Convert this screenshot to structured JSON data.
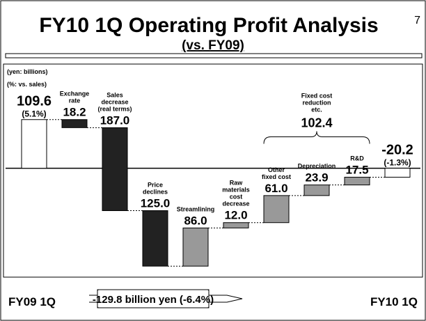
{
  "chart_data": {
    "type": "waterfall",
    "title": "FY10 1Q Operating Profit Analysis",
    "subtitle": "(vs. FY09)",
    "page_number": "7",
    "unit_labels": [
      "(yen: billions)",
      "(%: vs. sales)"
    ],
    "categories": [
      null,
      "Exchange\nrate",
      "Sales\ndecrease\n(real terms)",
      "Price\ndeclines",
      "Streamlining",
      "Raw\nmaterials\ncost\ndecrease",
      "Other\nfixed cost",
      "Depreciation",
      "R&D",
      null
    ],
    "values": [
      109.6,
      18.2,
      187.0,
      125.0,
      86.0,
      12.0,
      61.0,
      23.9,
      17.5,
      -20.2
    ],
    "value_labels": [
      "109.6",
      "18.2",
      "187.0",
      "125.0",
      "86.0",
      "12.0",
      "61.0",
      "23.9",
      "17.5",
      "-20.2"
    ],
    "pct_labels": [
      "(5.1%)",
      null,
      null,
      null,
      null,
      null,
      null,
      null,
      null,
      "(-1.3%)"
    ],
    "kinds": [
      "total",
      "down",
      "down",
      "down",
      "up",
      "up",
      "up",
      "up",
      "up",
      "total"
    ],
    "colors": [
      "#ffffff",
      "#222222",
      "#222222",
      "#222222",
      "#999999",
      "#999999",
      "#999999",
      "#999999",
      "#999999",
      "#ffffff"
    ],
    "group": {
      "label": "Fixed cost\nreduction\netc.",
      "value": 102.4,
      "value_label": "102.4"
    },
    "ylim": [
      -225,
      230
    ],
    "footer": {
      "from": "FY09 1Q",
      "change": "-129.8 billion yen (-6.4%)",
      "to": "FY10 1Q"
    }
  }
}
